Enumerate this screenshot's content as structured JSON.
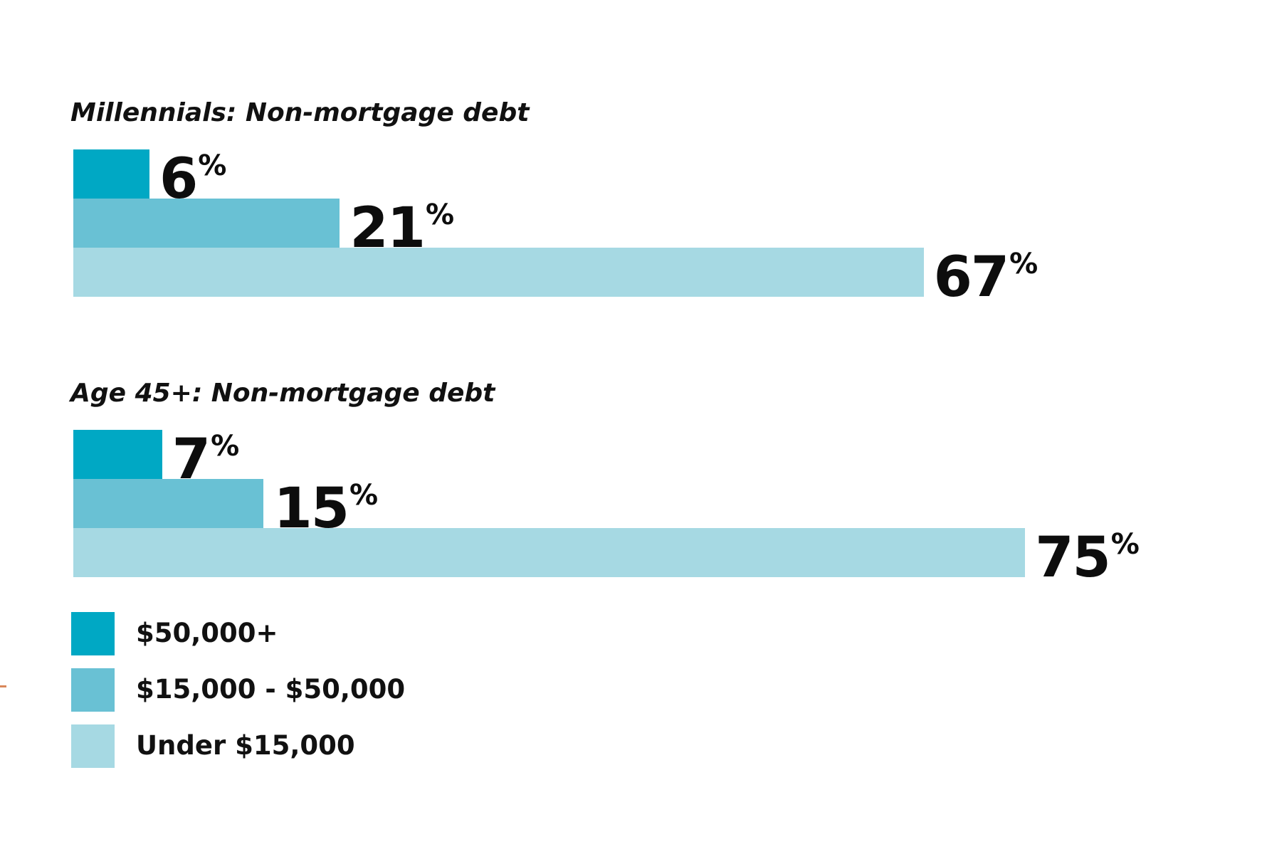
{
  "chart_data": [
    {
      "type": "bar",
      "orientation": "horizontal",
      "title": "Millennials: Non-mortgage debt",
      "categories": [
        "$50,000+",
        "$15,000 - $50,000",
        "Under $15,000"
      ],
      "values": [
        6,
        21,
        67
      ],
      "value_labels": [
        "6",
        "21",
        "67"
      ],
      "unit": "%",
      "colors": [
        "#00a8c4",
        "#69c1d4",
        "#a6d9e3"
      ],
      "xlim": [
        0,
        100
      ],
      "grid": false
    },
    {
      "type": "bar",
      "orientation": "horizontal",
      "title": "Age 45+: Non-mortgage debt",
      "categories": [
        "$50,000+",
        "$15,000 - $50,000",
        "Under $15,000"
      ],
      "values": [
        7,
        15,
        75
      ],
      "value_labels": [
        "7",
        "15",
        "75"
      ],
      "unit": "%",
      "colors": [
        "#00a8c4",
        "#69c1d4",
        "#a6d9e3"
      ],
      "xlim": [
        0,
        100
      ],
      "grid": false
    }
  ],
  "legend": {
    "placement": "bottom-left",
    "items": [
      {
        "label": "$50,000+",
        "color": "#00a8c4"
      },
      {
        "label": "$15,000 - $50,000",
        "color": "#69c1d4"
      },
      {
        "label": "Under $15,000",
        "color": "#a6d9e3"
      }
    ]
  }
}
